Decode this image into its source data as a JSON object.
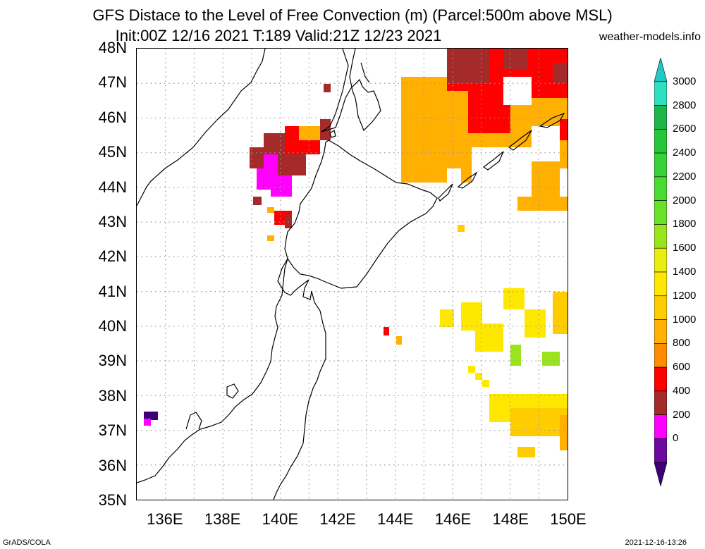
{
  "title_line1": "GFS Distace to the Level of Free Convection (m) (Parcel:500m above MSL)",
  "title_line2": "Init:00Z 12/16 2021 T:189 Valid:21Z 12/23 2021",
  "site": "weather-models.info",
  "footer_left": "GrADS/COLA",
  "footer_right": "2021-12-16-13:26",
  "lat_labels": [
    "48N",
    "47N",
    "46N",
    "45N",
    "44N",
    "43N",
    "42N",
    "41N",
    "40N",
    "39N",
    "38N",
    "37N",
    "36N",
    "35N"
  ],
  "lon_labels": [
    "136E",
    "138E",
    "140E",
    "142E",
    "144E",
    "146E",
    "148E",
    "150E"
  ],
  "colorbar": {
    "labels": [
      "3000",
      "2800",
      "2600",
      "2400",
      "2200",
      "2000",
      "1800",
      "1600",
      "1400",
      "1200",
      "1000",
      "800",
      "600",
      "400",
      "200",
      "0"
    ],
    "colors": [
      "#20c8c8",
      "#2fe0c0",
      "#1fb44a",
      "#26c63a",
      "#38d238",
      "#48dc30",
      "#68e228",
      "#9ae41e",
      "#e8ee10",
      "#ffe800",
      "#ffcc00",
      "#ffb000",
      "#ff8c00",
      "#ff0000",
      "#a52a2a",
      "#ff00ff",
      "#6a0aa0",
      "#3c0078"
    ]
  },
  "map": {
    "extent": {
      "lon": [
        135,
        150
      ],
      "lat": [
        35,
        48
      ]
    },
    "colors": {
      "ocean": "#ffffff",
      "coast": "#000000",
      "grid": "#999999"
    }
  }
}
